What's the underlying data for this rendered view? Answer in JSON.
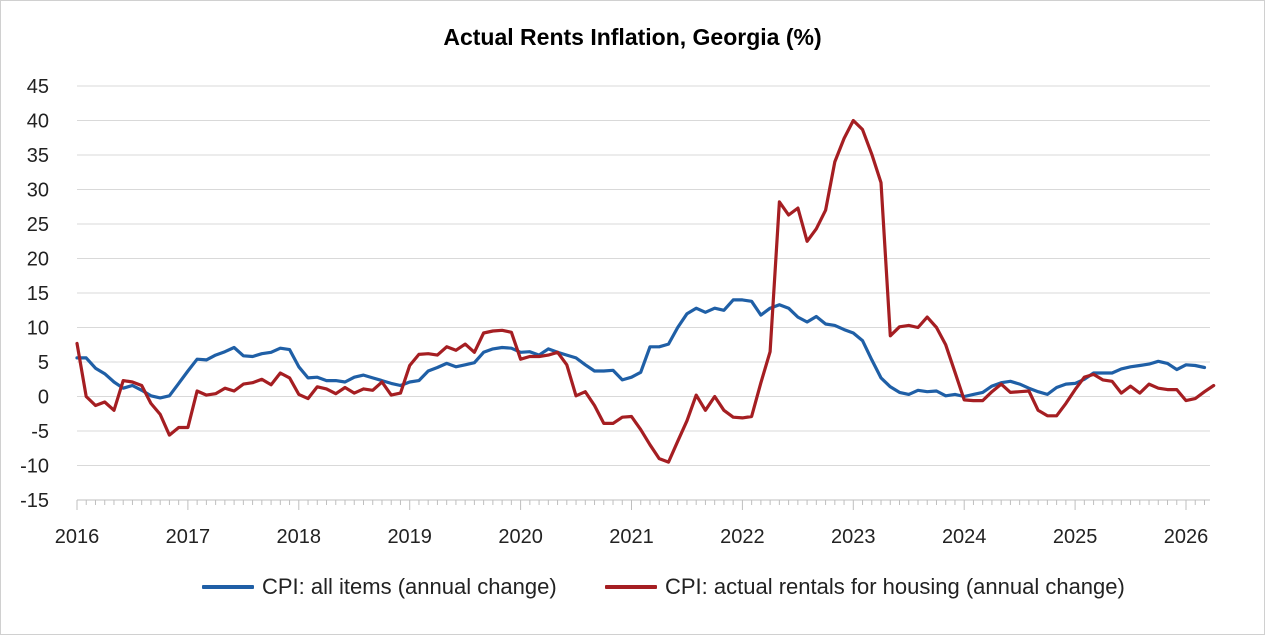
{
  "chart_data": {
    "type": "line",
    "title": "Actual Rents Inflation, Georgia (%)",
    "xlabel": "",
    "ylabel": "",
    "x_start": "2016-01",
    "x_tick_labels": [
      "2016",
      "2017",
      "2018",
      "2019",
      "2020",
      "2021",
      "2022",
      "2023",
      "2024",
      "2025",
      "2026"
    ],
    "y_ticks": [
      45,
      40,
      35,
      30,
      25,
      20,
      15,
      10,
      5,
      0,
      -5,
      -10,
      -15
    ],
    "ylim": [
      -15,
      45
    ],
    "grid": "horizontal",
    "legend_position": "bottom",
    "series": [
      {
        "name": "CPI: all items (annual change)",
        "color": "#1f5fa6",
        "values": [
          5.6,
          5.6,
          4.1,
          3.3,
          2.1,
          1.2,
          1.6,
          0.9,
          0.1,
          -0.2,
          0.1,
          1.9,
          3.7,
          5.4,
          5.3,
          6.0,
          6.5,
          7.1,
          5.9,
          5.8,
          6.2,
          6.4,
          7.0,
          6.8,
          4.3,
          2.7,
          2.8,
          2.3,
          2.3,
          2.1,
          2.8,
          3.1,
          2.7,
          2.3,
          1.9,
          1.6,
          2.1,
          2.3,
          3.7,
          4.2,
          4.8,
          4.3,
          4.6,
          4.9,
          6.4,
          6.9,
          7.1,
          7.0,
          6.4,
          6.5,
          6.0,
          6.9,
          6.4,
          6.0,
          5.6,
          4.6,
          3.7,
          3.7,
          3.8,
          2.4,
          2.8,
          3.5,
          7.2,
          7.2,
          7.6,
          10.0,
          12.0,
          12.8,
          12.2,
          12.8,
          12.5,
          14.0,
          14.0,
          13.8,
          11.8,
          12.8,
          13.3,
          12.8,
          11.5,
          10.8,
          11.6,
          10.5,
          10.3,
          9.7,
          9.2,
          8.1,
          5.3,
          2.7,
          1.4,
          0.6,
          0.3,
          0.9,
          0.7,
          0.8,
          0.1,
          0.3,
          0.0,
          0.3,
          0.6,
          1.5,
          2.0,
          2.2,
          1.8,
          1.2,
          0.7,
          0.3,
          1.3,
          1.8,
          1.9,
          2.5,
          3.4,
          3.4,
          3.4,
          4.0,
          4.3,
          4.5,
          4.7,
          5.1,
          4.8,
          3.9,
          4.6,
          4.5,
          4.2
        ]
      },
      {
        "name": "CPI: actual rentals for housing (annual change)",
        "color": "#a51e22",
        "values": [
          7.7,
          0.0,
          -1.3,
          -0.8,
          -2.0,
          2.3,
          2.1,
          1.6,
          -1.0,
          -2.6,
          -5.6,
          -4.5,
          -4.5,
          0.8,
          0.2,
          0.4,
          1.2,
          0.8,
          1.8,
          2.0,
          2.5,
          1.7,
          3.4,
          2.7,
          0.3,
          -0.3,
          1.4,
          1.1,
          0.4,
          1.3,
          0.5,
          1.1,
          0.9,
          2.1,
          0.2,
          0.5,
          4.5,
          6.1,
          6.2,
          6.0,
          7.2,
          6.7,
          7.6,
          6.4,
          9.2,
          9.5,
          9.6,
          9.3,
          5.4,
          5.8,
          5.8,
          6.0,
          6.4,
          4.6,
          0.1,
          0.7,
          -1.3,
          -3.9,
          -3.9,
          -3.0,
          -2.9,
          -4.8,
          -7.0,
          -9.0,
          -9.5,
          -6.5,
          -3.5,
          0.2,
          -2.0,
          0.0,
          -2.0,
          -3.0,
          -3.1,
          -2.9,
          2.0,
          6.5,
          28.2,
          26.3,
          27.3,
          22.5,
          24.3,
          27.0,
          34.0,
          37.4,
          40.0,
          38.7,
          35.1,
          31.0,
          8.8,
          10.1,
          10.3,
          10.0,
          11.5,
          10.0,
          7.5,
          3.5,
          -0.5,
          -0.6,
          -0.6,
          0.7,
          1.8,
          0.6,
          0.7,
          0.8,
          -2.0,
          -2.8,
          -2.8,
          -1.0,
          1.0,
          2.8,
          3.2,
          2.4,
          2.2,
          0.5,
          1.5,
          0.5,
          1.8,
          1.2,
          1.0,
          1.0,
          -0.6,
          -0.3,
          0.7,
          1.6
        ]
      }
    ]
  },
  "legend": {
    "item1": "CPI: all items (annual change)",
    "item2": "CPI: actual rentals for housing (annual change)"
  }
}
